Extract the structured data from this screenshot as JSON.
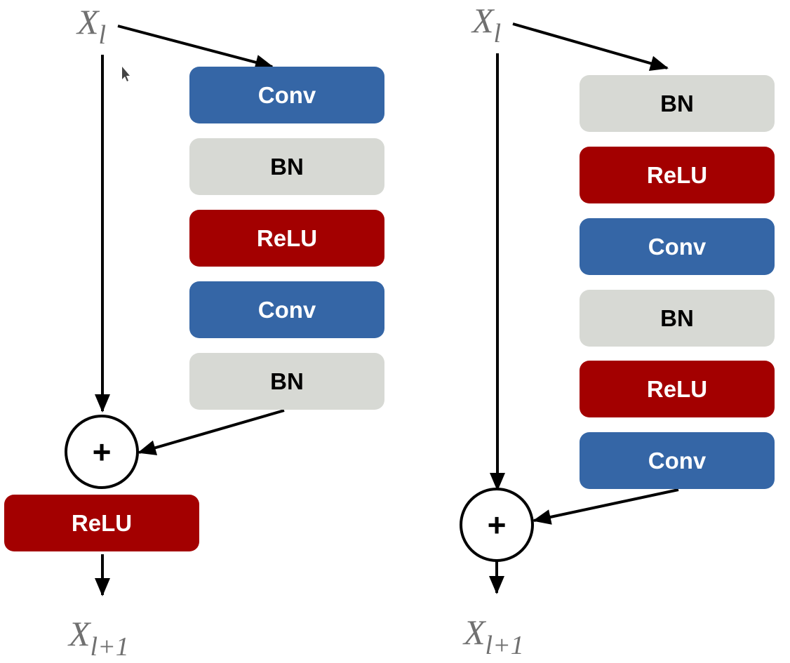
{
  "colors": {
    "conv": "#3566a6",
    "bn": "#d7d9d4",
    "relu": "#a30000",
    "text_light": "#ffffff",
    "text_dark": "#000000",
    "math": "#707070"
  },
  "left_block": {
    "input": {
      "symbol": "X",
      "subscript": "l"
    },
    "layers": [
      "Conv",
      "BN",
      "ReLU",
      "Conv",
      "BN"
    ],
    "adder": "+",
    "post": "ReLU",
    "output": {
      "symbol": "X",
      "subscript": "l+1"
    }
  },
  "right_block": {
    "input": {
      "symbol": "X",
      "subscript": "l"
    },
    "layers": [
      "BN",
      "ReLU",
      "Conv",
      "BN",
      "ReLU",
      "Conv"
    ],
    "adder": "+",
    "output": {
      "symbol": "X",
      "subscript": "l+1"
    }
  }
}
